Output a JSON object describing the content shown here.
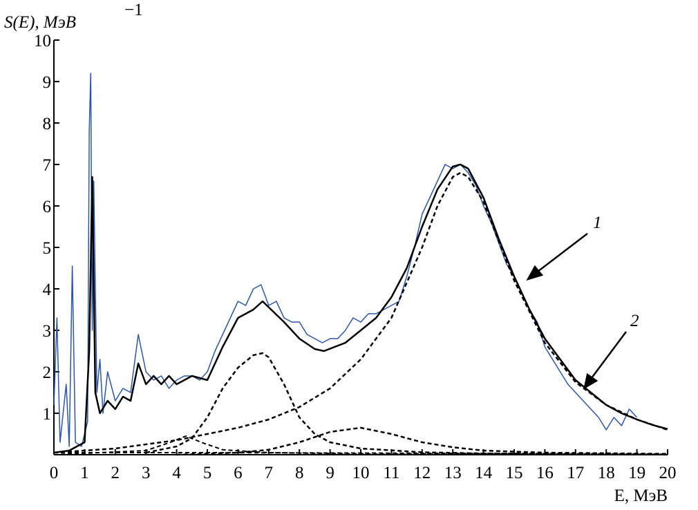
{
  "chart_data": {
    "type": "line",
    "ylabel": "S(E), МэВ",
    "ylabel_exponent": "−1",
    "xlabel": "E, МэВ",
    "xlim": [
      0,
      20
    ],
    "ylim": [
      0,
      10
    ],
    "xticks": [
      0,
      1,
      2,
      3,
      4,
      5,
      6,
      7,
      8,
      9,
      10,
      11,
      12,
      13,
      14,
      15,
      16,
      17,
      18,
      19,
      20
    ],
    "yticks": [
      1,
      2,
      3,
      4,
      5,
      6,
      7,
      8,
      9,
      10
    ],
    "annotations": [
      "1",
      "2"
    ],
    "series": [
      {
        "color": "#2b55a8",
        "dashed": false,
        "width": 1.5,
        "x": [
          0,
          0.1,
          0.2,
          0.4,
          0.5,
          0.6,
          0.7,
          0.9,
          1.1,
          1.15,
          1.2,
          1.25,
          1.3,
          1.4,
          1.5,
          1.6,
          1.75,
          2,
          2.25,
          2.5,
          2.75,
          3,
          3.25,
          3.5,
          3.75,
          4,
          4.25,
          4.5,
          4.75,
          5,
          5.25,
          5.5,
          5.75,
          6,
          6.25,
          6.5,
          6.75,
          7,
          7.25,
          7.5,
          7.75,
          8,
          8.25,
          8.5,
          8.75,
          9,
          9.25,
          9.5,
          9.75,
          10,
          10.25,
          10.5,
          10.75,
          11,
          11.25,
          11.5,
          11.75,
          12,
          12.25,
          12.5,
          12.75,
          13,
          13.25,
          13.5,
          13.75,
          14,
          14.25,
          14.5,
          14.75,
          15,
          15.25,
          15.5,
          15.75,
          16,
          16.25,
          16.5,
          16.75,
          17,
          17.25,
          17.5,
          17.75,
          18,
          18.25,
          18.5,
          18.75,
          19
        ],
        "values": [
          1.2,
          3.3,
          0.3,
          1.7,
          0.2,
          4.55,
          0.3,
          0.2,
          0.8,
          7.8,
          9.2,
          3.0,
          6.6,
          1.5,
          2.3,
          1.0,
          2.0,
          1.3,
          1.6,
          1.5,
          2.9,
          2.0,
          1.8,
          1.9,
          1.6,
          1.8,
          1.9,
          1.9,
          1.8,
          2.0,
          2.5,
          2.9,
          3.3,
          3.7,
          3.6,
          4.0,
          4.1,
          3.6,
          3.7,
          3.3,
          3.2,
          3.2,
          2.9,
          2.8,
          2.7,
          2.8,
          2.8,
          3.0,
          3.3,
          3.2,
          3.4,
          3.4,
          3.5,
          3.6,
          3.7,
          4.3,
          5.0,
          5.8,
          6.2,
          6.6,
          7.0,
          6.9,
          7.0,
          6.8,
          6.5,
          6.0,
          5.6,
          5.1,
          4.6,
          4.3,
          3.9,
          3.5,
          3.2,
          2.6,
          2.3,
          2.0,
          1.7,
          1.5,
          1.3,
          1.1,
          0.9,
          0.6,
          0.9,
          0.7,
          1.1,
          0.9
        ]
      },
      {
        "color": "#000000",
        "dashed": false,
        "width": 2.5,
        "x": [
          0,
          0.5,
          1,
          1.15,
          1.25,
          1.35,
          1.5,
          1.75,
          2,
          2.25,
          2.5,
          2.75,
          3,
          3.25,
          3.5,
          3.75,
          4,
          4.5,
          5,
          5.5,
          6,
          6.5,
          6.8,
          7.5,
          8,
          8.5,
          8.8,
          9.5,
          10,
          10.5,
          11,
          11.5,
          12,
          12.5,
          13,
          13.25,
          13.5,
          14,
          14.5,
          15,
          15.5,
          16,
          16.5,
          17,
          17.5,
          18,
          18.5,
          19,
          19.5,
          20
        ],
        "values": [
          0.05,
          0.1,
          0.3,
          2.5,
          6.7,
          1.5,
          1.0,
          1.3,
          1.1,
          1.4,
          1.3,
          2.2,
          1.7,
          1.9,
          1.7,
          1.9,
          1.7,
          1.9,
          1.8,
          2.6,
          3.3,
          3.5,
          3.7,
          3.2,
          2.8,
          2.55,
          2.5,
          2.7,
          3.0,
          3.3,
          3.8,
          4.5,
          5.5,
          6.4,
          6.95,
          7.0,
          6.9,
          6.2,
          5.2,
          4.3,
          3.5,
          2.8,
          2.3,
          1.8,
          1.5,
          1.2,
          1.0,
          0.85,
          0.72,
          0.62
        ]
      },
      {
        "color": "#000000",
        "dashed": true,
        "width": 2.5,
        "x": [
          0,
          2,
          4,
          5,
          6,
          7,
          8,
          9,
          10,
          11,
          12,
          12.5,
          13,
          13.25,
          13.5,
          14,
          15,
          16,
          17,
          18,
          19,
          20
        ],
        "values": [
          0.05,
          0.15,
          0.35,
          0.5,
          0.65,
          0.85,
          1.15,
          1.6,
          2.3,
          3.3,
          5.0,
          6.0,
          6.7,
          6.8,
          6.7,
          6.1,
          4.2,
          2.7,
          1.75,
          1.2,
          0.85,
          0.6
        ]
      },
      {
        "color": "#000000",
        "dashed": true,
        "width": 2.5,
        "x": [
          3,
          4,
          4.5,
          5,
          5.5,
          6,
          6.5,
          6.8,
          7,
          7.5,
          8,
          8.5,
          9,
          10,
          12,
          14,
          20
        ],
        "values": [
          0.05,
          0.2,
          0.4,
          0.9,
          1.6,
          2.1,
          2.4,
          2.45,
          2.35,
          1.7,
          0.9,
          0.5,
          0.3,
          0.15,
          0.06,
          0.03,
          0.01
        ]
      },
      {
        "color": "#000000",
        "dashed": true,
        "width": 2.5,
        "x": [
          4,
          6,
          7,
          8,
          9,
          10,
          11,
          12,
          13,
          14,
          16,
          20
        ],
        "values": [
          0,
          0.05,
          0.12,
          0.3,
          0.55,
          0.65,
          0.5,
          0.3,
          0.18,
          0.1,
          0.05,
          0.02
        ]
      },
      {
        "color": "#000000",
        "dashed": true,
        "width": 2,
        "x": [
          0,
          3,
          3.8,
          4.3,
          4.8,
          5.5,
          7,
          10,
          20
        ],
        "values": [
          0,
          0.1,
          0.3,
          0.45,
          0.3,
          0.12,
          0.05,
          0.02,
          0
        ]
      },
      {
        "color": "#000000",
        "dashed": true,
        "width": 2,
        "x": [
          0,
          5,
          20
        ],
        "values": [
          0.05,
          0.05,
          0.02
        ]
      }
    ]
  }
}
